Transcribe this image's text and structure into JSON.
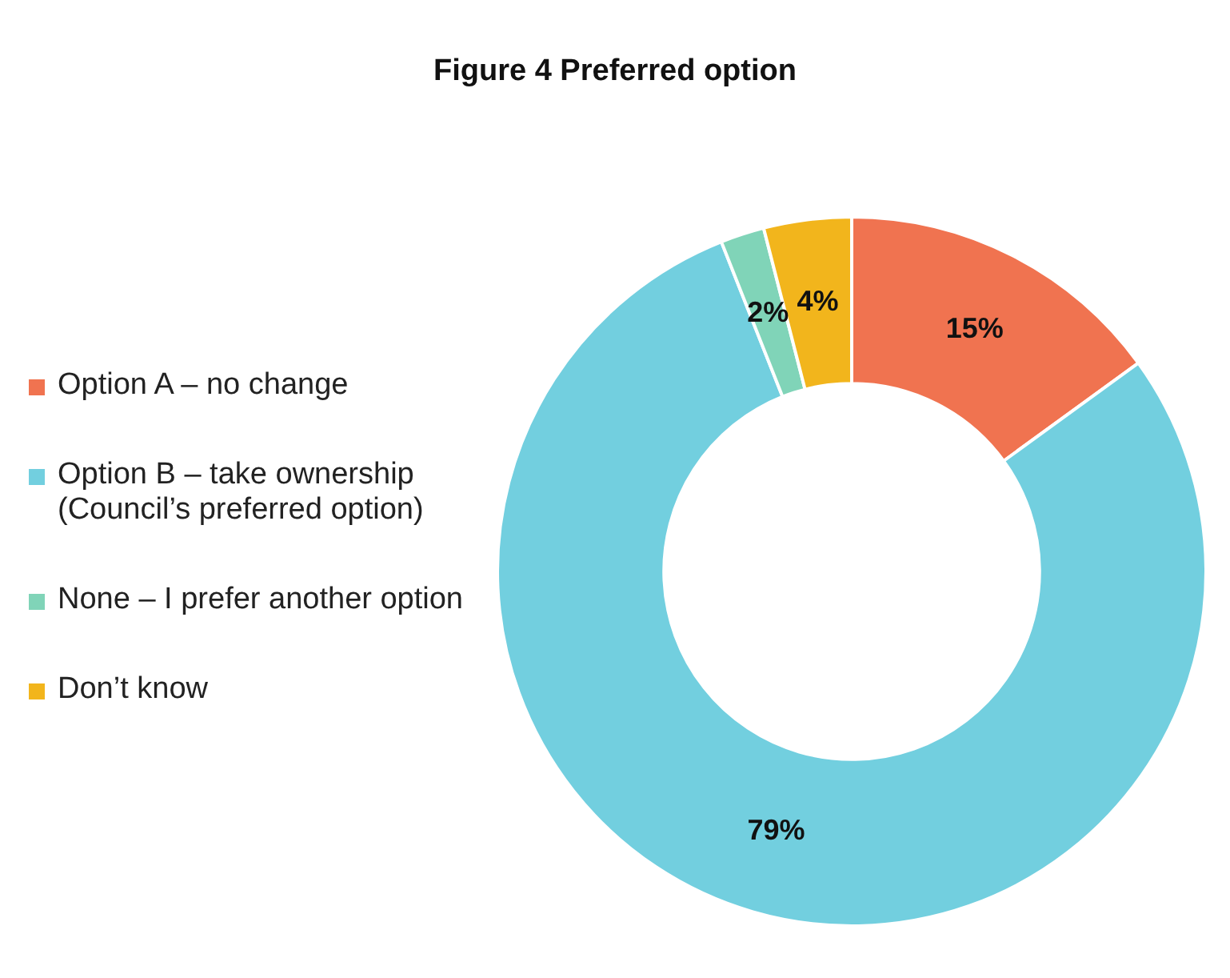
{
  "chart_data": {
    "type": "donut",
    "title": "Figure 4 Preferred option",
    "categories": [
      "Option A – no change",
      "Option B – take ownership (Council’s preferred option)",
      "None – I prefer another option",
      "Don’t know"
    ],
    "values": [
      15,
      79,
      2,
      4
    ],
    "value_labels": [
      "15%",
      "79%",
      "2%",
      "4%"
    ],
    "colors": [
      "#f07350",
      "#72cfdf",
      "#80d4b8",
      "#f2b51c"
    ],
    "legend": "left"
  }
}
